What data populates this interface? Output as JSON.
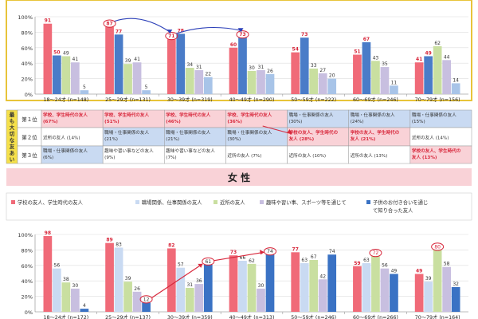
{
  "chart_data": [
    {
      "type": "bar",
      "title": "",
      "categories": [
        "18～24才 (n=148)",
        "25～29才 (n=131)",
        "30～39才 (n=319)",
        "40～49才 (n=290)",
        "50～59才 (n=222)",
        "60～69才 (n=246)",
        "70～79才 (n=156)"
      ],
      "ylim": [
        0,
        100
      ],
      "yticks": [
        "0%",
        "20%",
        "40%",
        "60%",
        "80%",
        "100%"
      ],
      "series": [
        {
          "name": "学校の友人、学生時代の友人",
          "color": "#f06a78",
          "values": [
            91,
            87,
            71,
            60,
            54,
            51,
            41
          ]
        },
        {
          "name": "職場関係、仕事関係の友人",
          "color": "#4a7cc8",
          "values": [
            50,
            77,
            78,
            73,
            73,
            67,
            49
          ]
        },
        {
          "name": "近所の友人",
          "color": "#c9dfa0",
          "values": [
            49,
            39,
            34,
            30,
            33,
            43,
            62
          ]
        },
        {
          "name": "趣味や習い事、スポーツ等を通じて",
          "color": "#c8bfe0",
          "values": [
            41,
            41,
            31,
            31,
            27,
            35,
            44
          ]
        },
        {
          "name": "子供のお付き合いを通じて知り合った友人",
          "color": "#a8c4e8",
          "values": [
            5,
            5,
            22,
            26,
            20,
            11,
            14
          ]
        }
      ],
      "circled": [
        [
          1,
          0
        ],
        [
          2,
          0
        ],
        [
          3,
          1
        ]
      ]
    },
    {
      "type": "bar",
      "title": "",
      "categories": [
        "18～24才 (n=172)",
        "25～29才 (n=137)",
        "30～39才 (n=359)",
        "40～49才 (n=313)",
        "50～59才 (n=246)",
        "60～69才 (n=266)",
        "70～79才 (n=164)"
      ],
      "ylim": [
        0,
        100
      ],
      "yticks": [
        "0%",
        "20%",
        "40%",
        "60%",
        "80%",
        "100%"
      ],
      "series": [
        {
          "name": "学校の友人、学生時代の友人",
          "color": "#f06a78",
          "values": [
            98,
            89,
            82,
            73,
            77,
            59,
            49
          ]
        },
        {
          "name": "職場関係、仕事関係の友人",
          "color": "#c9daf2",
          "values": [
            56,
            83,
            57,
            66,
            63,
            63,
            39
          ]
        },
        {
          "name": "近所の友人",
          "color": "#c9dfa0",
          "values": [
            38,
            39,
            31,
            62,
            67,
            72,
            80
          ]
        },
        {
          "name": "趣味や習い事、スポーツ等を通じて",
          "color": "#c8bfe0",
          "values": [
            30,
            26,
            36,
            30,
            42,
            56,
            58
          ]
        },
        {
          "name": "子供のお付き合いを通じて知り合った友人",
          "color": "#3a72c4",
          "values": [
            4,
            12,
            61,
            74,
            74,
            49,
            32
          ]
        }
      ],
      "circled": [
        [
          1,
          4
        ],
        [
          2,
          4
        ],
        [
          3,
          4
        ],
        [
          5,
          2
        ],
        [
          6,
          2
        ]
      ]
    }
  ],
  "ranking": {
    "side_label": "最も大切な友あい",
    "rank_labels": [
      "第１位",
      "第２位",
      "第３位"
    ],
    "rows": [
      [
        {
          "text": "学校、学生時代の友人\n(67%)",
          "style": "pink"
        },
        {
          "text": "学校、学生時代の友人\n(51%)",
          "style": "pink"
        },
        {
          "text": "学校、学生時代の友人\n(46%)",
          "style": "pink"
        },
        {
          "text": "学校、学生時代の友人\n(36%)",
          "style": "pink"
        },
        {
          "text": "職場・仕事関係の友人\n(30%)",
          "style": "blue"
        },
        {
          "text": "職場・仕事関係の友人\n(24%)",
          "style": "blue"
        },
        {
          "text": "職場・仕事関係の友人\n(15%)",
          "style": "blue"
        }
      ],
      [
        {
          "text": "近所の友人 (14%)",
          "style": "white"
        },
        {
          "text": "職場・仕事関係の友人\n(21%)",
          "style": "blue"
        },
        {
          "text": "職場・仕事関係の友人\n(21%)",
          "style": "blue"
        },
        {
          "text": "職場・仕事関係の友人\n(30%)",
          "style": "blue"
        },
        {
          "text": "学校の友人、学生時代の\n友人 (28%)",
          "style": "pink"
        },
        {
          "text": "学校の友人、学生時代の\n友人 (21%)",
          "style": "pink"
        },
        {
          "text": "近所の友人 (14%)",
          "style": "white"
        }
      ],
      [
        {
          "text": "職場・仕事関係の友人\n(6%)",
          "style": "blue"
        },
        {
          "text": "趣味や習い事などの友人\n(9%)",
          "style": "white"
        },
        {
          "text": "趣味や習い事などの友人\n(7%)",
          "style": "white"
        },
        {
          "text": "近所の友人 (7%)",
          "style": "white"
        },
        {
          "text": "近所の友人 (10%)",
          "style": "white"
        },
        {
          "text": "近所の友人 (13%)",
          "style": "white"
        },
        {
          "text": "学校の友人、学生時代の\n友人 (13%)",
          "style": "pink"
        }
      ]
    ]
  },
  "section_title": "女 性",
  "legend": [
    {
      "label": "学校の友人、学生時代の友人",
      "color": "#f06a78"
    },
    {
      "label": "職場関係、仕事関係の友人",
      "color": "#c9daf2"
    },
    {
      "label": "近所の友人",
      "color": "#c9dfa0"
    },
    {
      "label": "趣味や習い事、スポーツ等を通じて",
      "color": "#c8bfe0"
    },
    {
      "label": "子供のお付き合いを通じて知り合った友人",
      "color": "#3a72c4"
    }
  ]
}
